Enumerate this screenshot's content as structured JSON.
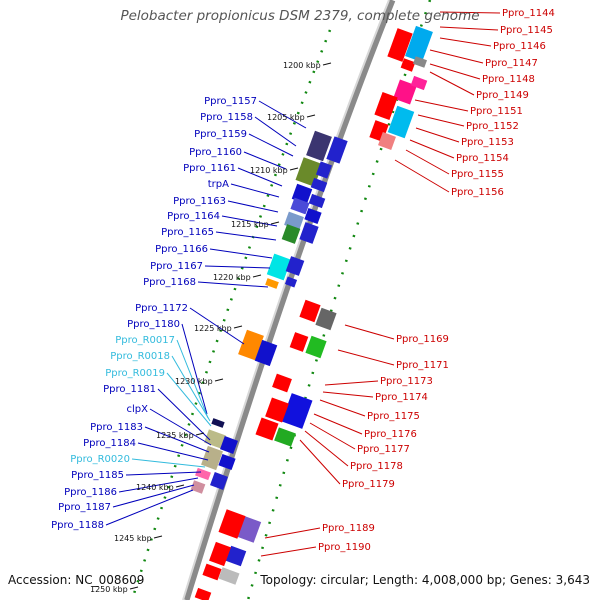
{
  "title": "Pelobacter propionicus DSM 2379, complete genome",
  "footer": {
    "accession": "Accession: NC_008609",
    "topology": "Topology: circular; Length: 4,008,000 bp; Genes: 3,643"
  },
  "colors": {
    "forward_label": "#0000bb",
    "rna_label": "#33bbdd",
    "reverse_label": "#cc0000",
    "backbone": "#888888",
    "tick": "#118811"
  },
  "kbp_ticks": [
    "1200 kbp",
    "1205 kbp",
    "1210 kbp",
    "1215 kbp",
    "1220 kbp",
    "1225 kbp",
    "1230 kbp",
    "1235 kbp",
    "1240 kbp",
    "1245 kbp",
    "1250 kbp"
  ],
  "left_labels": [
    {
      "text": "Ppro_1157",
      "kind": "forward"
    },
    {
      "text": "Ppro_1158",
      "kind": "forward"
    },
    {
      "text": "Ppro_1159",
      "kind": "forward"
    },
    {
      "text": "Ppro_1160",
      "kind": "forward"
    },
    {
      "text": "Ppro_1161",
      "kind": "forward"
    },
    {
      "text": "trpA",
      "kind": "forward"
    },
    {
      "text": "Ppro_1163",
      "kind": "forward"
    },
    {
      "text": "Ppro_1164",
      "kind": "forward"
    },
    {
      "text": "Ppro_1165",
      "kind": "forward"
    },
    {
      "text": "Ppro_1166",
      "kind": "forward"
    },
    {
      "text": "Ppro_1167",
      "kind": "forward"
    },
    {
      "text": "Ppro_1168",
      "kind": "forward"
    },
    {
      "text": "Ppro_1172",
      "kind": "forward"
    },
    {
      "text": "Ppro_1180",
      "kind": "forward"
    },
    {
      "text": "Ppro_R0017",
      "kind": "rna"
    },
    {
      "text": "Ppro_R0018",
      "kind": "rna"
    },
    {
      "text": "Ppro_R0019",
      "kind": "rna"
    },
    {
      "text": "Ppro_1181",
      "kind": "forward"
    },
    {
      "text": "clpX",
      "kind": "forward"
    },
    {
      "text": "Ppro_1183",
      "kind": "forward"
    },
    {
      "text": "Ppro_1184",
      "kind": "forward"
    },
    {
      "text": "Ppro_R0020",
      "kind": "rna"
    },
    {
      "text": "Ppro_1185",
      "kind": "forward"
    },
    {
      "text": "Ppro_1186",
      "kind": "forward"
    },
    {
      "text": "Ppro_1187",
      "kind": "forward"
    },
    {
      "text": "Ppro_1188",
      "kind": "forward"
    }
  ],
  "right_labels": [
    {
      "text": "Ppro_1144"
    },
    {
      "text": "Ppro_1145"
    },
    {
      "text": "Ppro_1146"
    },
    {
      "text": "Ppro_1147"
    },
    {
      "text": "Ppro_1148"
    },
    {
      "text": "Ppro_1149"
    },
    {
      "text": "Ppro_1151"
    },
    {
      "text": "Ppro_1152"
    },
    {
      "text": "Ppro_1153"
    },
    {
      "text": "Ppro_1154"
    },
    {
      "text": "Ppro_1155"
    },
    {
      "text": "Ppro_1156"
    },
    {
      "text": "Ppro_1169"
    },
    {
      "text": "Ppro_1171"
    },
    {
      "text": "Ppro_1173"
    },
    {
      "text": "Ppro_1174"
    },
    {
      "text": "Ppro_1175"
    },
    {
      "text": "Ppro_1176"
    },
    {
      "text": "Ppro_1177"
    },
    {
      "text": "Ppro_1178"
    },
    {
      "text": "Ppro_1179"
    },
    {
      "text": "Ppro_1189"
    },
    {
      "text": "Ppro_1190"
    }
  ]
}
